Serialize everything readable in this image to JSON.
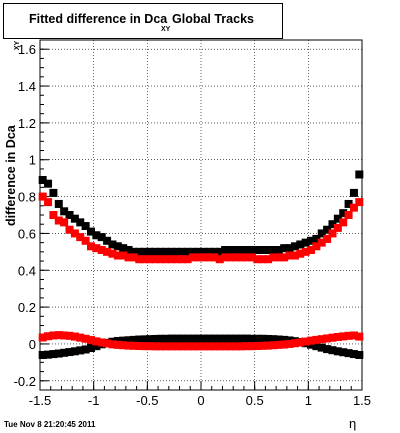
{
  "title": {
    "main": "Fitted difference in Dca",
    "subscript": "XY",
    "tail": "Global Tracks"
  },
  "y_axis_label": {
    "main": "difference in Dca",
    "subscript": "XY"
  },
  "x_axis_label": "η",
  "datestamp": "Tue Nov  8 21:20:45 2011",
  "colors": {
    "series1": "#000000",
    "series2": "#ff0000",
    "grid": "#000000"
  },
  "chart_data": {
    "type": "scatter",
    "xlim": [
      -1.5,
      1.5
    ],
    "ylim": [
      -0.25,
      1.65
    ],
    "grid": true,
    "x_ticks": [
      "-1.5",
      "-1",
      "-0.5",
      "0",
      "0.5",
      "1",
      "1.5"
    ],
    "x_tick_values": [
      -1.5,
      -1,
      -0.5,
      0,
      0.5,
      1,
      1.5
    ],
    "y_ticks": [
      "-0.2",
      "0",
      "0.2",
      "0.4",
      "0.6",
      "0.8",
      "1",
      "1.2",
      "1.4",
      "1.6"
    ],
    "y_tick_values": [
      -0.2,
      0,
      0.2,
      0.4,
      0.6,
      0.8,
      1.0,
      1.2,
      1.4,
      1.6
    ],
    "x": [
      -1.475,
      -1.425,
      -1.375,
      -1.325,
      -1.275,
      -1.225,
      -1.175,
      -1.125,
      -1.075,
      -1.025,
      -0.975,
      -0.925,
      -0.875,
      -0.825,
      -0.775,
      -0.725,
      -0.675,
      -0.625,
      -0.575,
      -0.525,
      -0.475,
      -0.425,
      -0.375,
      -0.325,
      -0.275,
      -0.225,
      -0.175,
      -0.125,
      -0.075,
      -0.025,
      0.025,
      0.075,
      0.125,
      0.175,
      0.225,
      0.275,
      0.325,
      0.375,
      0.425,
      0.475,
      0.525,
      0.575,
      0.625,
      0.675,
      0.725,
      0.775,
      0.825,
      0.875,
      0.925,
      0.975,
      1.025,
      1.075,
      1.125,
      1.175,
      1.225,
      1.275,
      1.325,
      1.375,
      1.425,
      1.475
    ],
    "series": [
      {
        "color": "#000000",
        "values": [
          0.89,
          0.87,
          0.82,
          0.76,
          0.72,
          0.7,
          0.68,
          0.66,
          0.64,
          0.61,
          0.59,
          0.58,
          0.56,
          0.54,
          0.53,
          0.52,
          0.51,
          0.5,
          0.5,
          0.5,
          0.5,
          0.5,
          0.5,
          0.5,
          0.5,
          0.5,
          0.5,
          0.5,
          0.5,
          0.5,
          0.5,
          0.5,
          0.5,
          0.5,
          0.51,
          0.51,
          0.51,
          0.51,
          0.51,
          0.51,
          0.51,
          0.51,
          0.51,
          0.51,
          0.51,
          0.52,
          0.52,
          0.53,
          0.54,
          0.55,
          0.56,
          0.57,
          0.6,
          0.62,
          0.65,
          0.68,
          0.71,
          0.76,
          0.82,
          0.92
        ]
      },
      {
        "color": "#ff0000",
        "values": [
          0.8,
          0.77,
          0.7,
          0.67,
          0.66,
          0.62,
          0.6,
          0.58,
          0.56,
          0.53,
          0.52,
          0.51,
          0.5,
          0.49,
          0.48,
          0.48,
          0.47,
          0.47,
          0.46,
          0.46,
          0.46,
          0.46,
          0.46,
          0.46,
          0.46,
          0.46,
          0.46,
          0.46,
          0.47,
          0.47,
          0.47,
          0.47,
          0.47,
          0.46,
          0.47,
          0.47,
          0.47,
          0.47,
          0.47,
          0.47,
          0.46,
          0.46,
          0.46,
          0.47,
          0.47,
          0.47,
          0.48,
          0.48,
          0.49,
          0.5,
          0.51,
          0.53,
          0.55,
          0.57,
          0.6,
          0.63,
          0.66,
          0.7,
          0.74,
          0.77
        ]
      },
      {
        "color": "#000000",
        "values": [
          -0.06,
          -0.058,
          -0.055,
          -0.052,
          -0.048,
          -0.044,
          -0.04,
          -0.035,
          -0.03,
          -0.022,
          -0.012,
          -0.002,
          0.006,
          0.012,
          0.016,
          0.018,
          0.02,
          0.022,
          0.024,
          0.025,
          0.026,
          0.027,
          0.028,
          0.028,
          0.029,
          0.029,
          0.029,
          0.029,
          0.029,
          0.029,
          0.029,
          0.029,
          0.029,
          0.029,
          0.029,
          0.029,
          0.029,
          0.029,
          0.029,
          0.028,
          0.028,
          0.028,
          0.027,
          0.026,
          0.024,
          0.022,
          0.019,
          0.015,
          0.01,
          0.004,
          -0.004,
          -0.012,
          -0.02,
          -0.028,
          -0.034,
          -0.04,
          -0.045,
          -0.05,
          -0.055,
          -0.06
        ]
      },
      {
        "color": "#ff0000",
        "values": [
          0.035,
          0.042,
          0.046,
          0.048,
          0.046,
          0.044,
          0.04,
          0.034,
          0.028,
          0.021,
          0.014,
          0.008,
          0.003,
          -0.002,
          -0.005,
          -0.007,
          -0.009,
          -0.01,
          -0.011,
          -0.012,
          -0.012,
          -0.013,
          -0.013,
          -0.013,
          -0.013,
          -0.013,
          -0.013,
          -0.013,
          -0.013,
          -0.013,
          -0.013,
          -0.013,
          -0.013,
          -0.013,
          -0.013,
          -0.013,
          -0.013,
          -0.013,
          -0.012,
          -0.012,
          -0.011,
          -0.01,
          -0.009,
          -0.007,
          -0.005,
          -0.003,
          0.0,
          0.004,
          0.008,
          0.013,
          0.018,
          0.022,
          0.026,
          0.03,
          0.034,
          0.038,
          0.041,
          0.044,
          0.046,
          0.04
        ]
      }
    ]
  }
}
